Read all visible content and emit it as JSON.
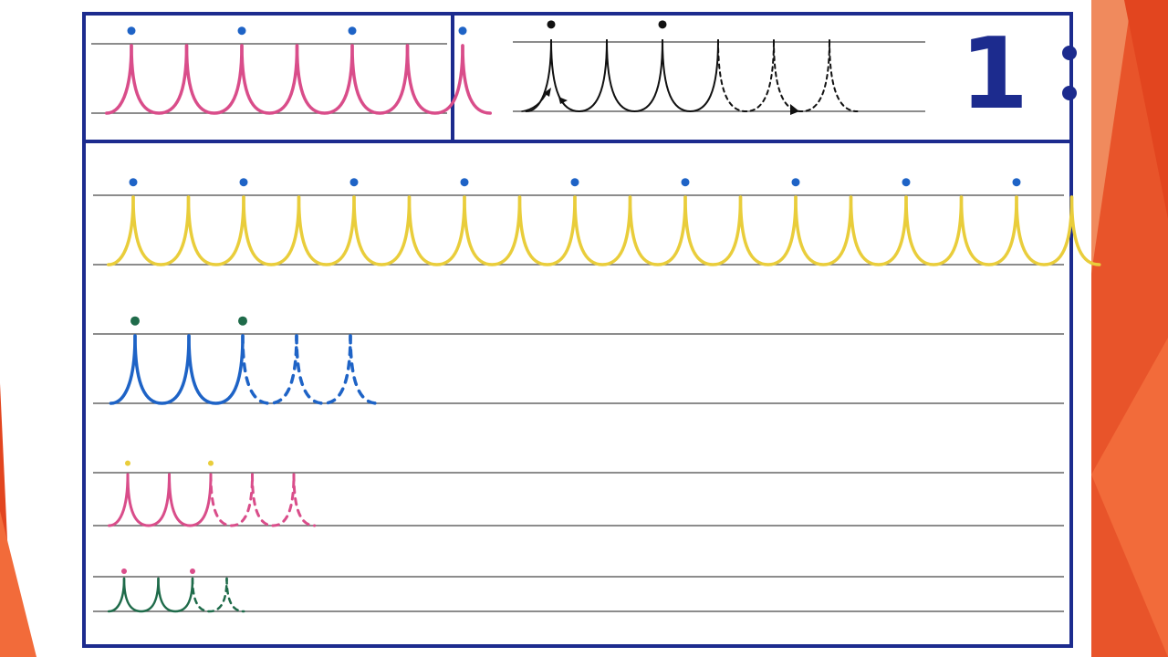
{
  "slide": {
    "accent_colors": [
      "#e8542a",
      "#f26b3a",
      "#f08a5d",
      "#e2451f"
    ]
  },
  "worksheet": {
    "page_number": "1",
    "frame_color": "#1c2b8e",
    "rule_color": "#666666",
    "sections": [
      {
        "id": "sample-top-left",
        "stroke": "#d94d8a",
        "dot": "#1e63c6",
        "solid_loops": 6,
        "dashed_loops": 0
      },
      {
        "id": "stroke-demo",
        "stroke": "#111111",
        "dot": "#111111",
        "solid_loops": 3,
        "dashed_loops": 2
      },
      {
        "id": "row-1",
        "stroke": "#e9cd3b",
        "dot": "#1e63c6",
        "solid_loops": 17,
        "dashed_loops": 0
      },
      {
        "id": "row-2",
        "stroke": "#1e63c6",
        "dot": "#1f6b4a",
        "solid_loops": 2,
        "dashed_loops": 2
      },
      {
        "id": "row-3",
        "stroke": "#d94d8a",
        "dot": "#e9cd3b",
        "solid_loops": 2,
        "dashed_loops": 2
      },
      {
        "id": "row-4",
        "stroke": "#1f6b4a",
        "dot": "#d94d8a",
        "solid_loops": 2,
        "dashed_loops": 1
      }
    ]
  }
}
